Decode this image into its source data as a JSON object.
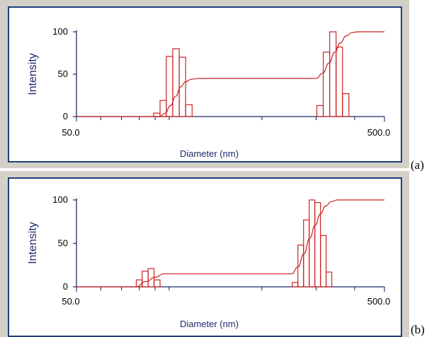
{
  "colors": {
    "frame": "#d4d0c8",
    "border": "#1f3e7a",
    "axis": "#1f2a6b",
    "series": "#cc2222"
  },
  "chart_data": [
    {
      "type": "bar",
      "panel_label": "(a)",
      "xlabel": "Diameter (nm)",
      "ylabel": "Intensity",
      "x_scale": "log",
      "xlim": [
        50.0,
        500.0
      ],
      "x_tick_labels": [
        "50.0",
        "500.0"
      ],
      "ylim": [
        0,
        100
      ],
      "y_tick_labels": [
        "100",
        "50",
        "0"
      ],
      "grid": false,
      "legend": "none",
      "series": [
        {
          "kind": "histogram",
          "bins": [
            {
              "x0": 89.0,
              "x1": 93.4,
              "value": 4
            },
            {
              "x0": 93.4,
              "x1": 97.9,
              "value": 19
            },
            {
              "x0": 97.9,
              "x1": 102.7,
              "value": 71
            },
            {
              "x0": 102.7,
              "x1": 107.8,
              "value": 80
            },
            {
              "x0": 107.8,
              "x1": 113.1,
              "value": 70
            },
            {
              "x0": 113.1,
              "x1": 118.7,
              "value": 14
            },
            {
              "x0": 301.6,
              "x1": 316.4,
              "value": 13
            },
            {
              "x0": 316.4,
              "x1": 332.0,
              "value": 76
            },
            {
              "x0": 332.0,
              "x1": 348.3,
              "value": 100
            },
            {
              "x0": 348.3,
              "x1": 365.4,
              "value": 82
            },
            {
              "x0": 365.4,
              "x1": 383.4,
              "value": 27
            }
          ]
        },
        {
          "kind": "cumulative",
          "x": [
            50.0,
            93.0,
            97.0,
            101.0,
            105.0,
            109.0,
            113.0,
            118.0,
            125.0,
            300.0,
            315.0,
            330.0,
            345.0,
            360.0,
            375.0,
            392.0,
            410.0,
            500.0
          ],
          "y": [
            0,
            0,
            4,
            13,
            24,
            35,
            41,
            44,
            45,
            45,
            51,
            63,
            76,
            87,
            95,
            99,
            100,
            100
          ]
        }
      ]
    },
    {
      "type": "bar",
      "panel_label": "(b)",
      "xlabel": "Diameter (nm)",
      "ylabel": "Intensity",
      "x_scale": "log",
      "xlim": [
        50.0,
        500.0
      ],
      "x_tick_labels": [
        "50.0",
        "500.0"
      ],
      "ylim": [
        0,
        100
      ],
      "y_tick_labels": [
        "100",
        "50",
        "0"
      ],
      "grid": false,
      "legend": "none",
      "series": [
        {
          "kind": "histogram",
          "bins": [
            {
              "x0": 78.2,
              "x1": 81.7,
              "value": 8
            },
            {
              "x0": 81.7,
              "x1": 85.4,
              "value": 18
            },
            {
              "x0": 85.4,
              "x1": 89.3,
              "value": 21
            },
            {
              "x0": 89.3,
              "x1": 93.4,
              "value": 8
            },
            {
              "x0": 251.0,
              "x1": 261.8,
              "value": 5
            },
            {
              "x0": 261.8,
              "x1": 273.1,
              "value": 48
            },
            {
              "x0": 273.1,
              "x1": 284.8,
              "value": 77
            },
            {
              "x0": 284.8,
              "x1": 297.1,
              "value": 100
            },
            {
              "x0": 297.1,
              "x1": 309.9,
              "value": 97
            },
            {
              "x0": 309.9,
              "x1": 323.2,
              "value": 59
            },
            {
              "x0": 323.2,
              "x1": 337.2,
              "value": 17
            }
          ]
        },
        {
          "kind": "cumulative",
          "x": [
            50.0,
            78.0,
            84.0,
            90.0,
            96.0,
            250.0,
            262.0,
            274.0,
            286.0,
            298.0,
            310.0,
            322.0,
            336.0,
            352.0,
            500.0
          ],
          "y": [
            0,
            0,
            6,
            11,
            15,
            15,
            23,
            38,
            56,
            71,
            84,
            93,
            98,
            100,
            100
          ]
        }
      ]
    }
  ]
}
